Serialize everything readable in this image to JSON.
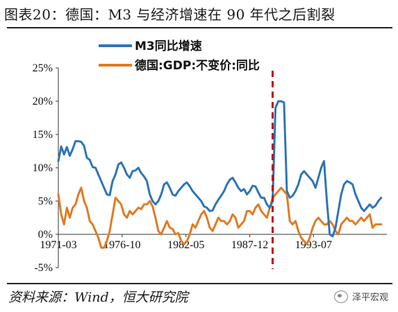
{
  "header": {
    "title": "图表20：德国：M3 与经济增速在 90 年代之后割裂"
  },
  "footer": {
    "source": "资料来源：Wind，恒大研究院",
    "logo_text": "泽平宏观"
  },
  "colors": {
    "m3": "#2e75b6",
    "gdp": "#e07b25",
    "marker": "#c00000"
  },
  "chart_data": {
    "type": "line",
    "title": "",
    "xlabel": "",
    "ylabel": "",
    "ylim": [
      -5,
      25
    ],
    "yticks": [
      -5,
      0,
      5,
      10,
      15,
      20,
      25
    ],
    "ytick_labels": [
      "-5%",
      "0%",
      "5%",
      "10%",
      "15%",
      "20%",
      "25%"
    ],
    "xlim": [
      1971.25,
      2000.0
    ],
    "xticks": [
      1971.25,
      1976.83,
      1982.42,
      1988.0,
      1993.58
    ],
    "xtick_labels": [
      "1971-03",
      "1976-10",
      "1982-05",
      "1987-12",
      "1993-07"
    ],
    "legend_position": "top",
    "grid": false,
    "vertical_marker_x": 1990.0,
    "series": [
      {
        "name": "M3同比增速",
        "x": [
          1971.25,
          1971.5,
          1971.75,
          1972.0,
          1972.25,
          1972.5,
          1972.75,
          1973.0,
          1973.25,
          1973.5,
          1973.75,
          1974.0,
          1974.25,
          1974.5,
          1974.75,
          1975.0,
          1975.25,
          1975.5,
          1975.75,
          1976.0,
          1976.25,
          1976.5,
          1976.75,
          1977.0,
          1977.25,
          1977.5,
          1977.75,
          1978.0,
          1978.25,
          1978.5,
          1978.75,
          1979.0,
          1979.25,
          1979.5,
          1979.75,
          1980.0,
          1980.25,
          1980.5,
          1980.75,
          1981.0,
          1981.25,
          1981.5,
          1981.75,
          1982.0,
          1982.25,
          1982.5,
          1982.75,
          1983.0,
          1983.25,
          1983.5,
          1983.75,
          1984.0,
          1984.25,
          1984.5,
          1984.75,
          1985.0,
          1985.25,
          1985.5,
          1985.75,
          1986.0,
          1986.25,
          1986.5,
          1986.75,
          1987.0,
          1987.25,
          1987.5,
          1987.75,
          1988.0,
          1988.25,
          1988.5,
          1988.75,
          1989.0,
          1989.25,
          1989.5,
          1989.75,
          1990.0,
          1990.25,
          1990.5,
          1990.75,
          1991.0,
          1991.25,
          1991.5,
          1991.75,
          1992.0,
          1992.25,
          1992.5,
          1992.75,
          1993.0,
          1993.25,
          1993.5,
          1993.75,
          1994.0,
          1994.25,
          1994.5,
          1994.75,
          1995.0,
          1995.25,
          1995.5,
          1995.75,
          1996.0,
          1996.25,
          1996.5,
          1996.75,
          1997.0,
          1997.25,
          1997.5,
          1997.75,
          1998.0,
          1998.25,
          1998.5,
          1998.75,
          1999.0,
          1999.25,
          1999.5
        ],
        "values": [
          11,
          13.2,
          12,
          13.1,
          11.8,
          12.8,
          14,
          14,
          13.9,
          13.3,
          11.5,
          11.2,
          10.1,
          10,
          9,
          8,
          7,
          6,
          5.9,
          8,
          9,
          10.5,
          10.8,
          10,
          9,
          8.5,
          9.5,
          9.6,
          10,
          9.2,
          8.7,
          8,
          6,
          5,
          4.5,
          5,
          6,
          7.5,
          7.8,
          7,
          6,
          5.8,
          6.5,
          7,
          7.5,
          7.8,
          7.2,
          6.5,
          6,
          5.5,
          5,
          4.2,
          4,
          3.5,
          3.6,
          4.5,
          5.2,
          5.8,
          6.5,
          7.5,
          8.2,
          8.5,
          7.8,
          7,
          6.5,
          6.8,
          6,
          6.5,
          7.3,
          7.2,
          6.3,
          5.5,
          5.5,
          4.5,
          4,
          5,
          19,
          20,
          20,
          19.8,
          6.5,
          5.5,
          5.8,
          6.5,
          7.5,
          9,
          9.5,
          9,
          8.5,
          8,
          7,
          8.5,
          10,
          11,
          5,
          0,
          -0.3,
          1,
          3.5,
          6,
          7.5,
          8,
          7.8,
          7.5,
          6,
          5,
          4,
          3.5,
          4,
          4.5,
          4,
          4.3,
          5,
          5.5
        ]
      },
      {
        "name": "德国:GDP:不变价:同比",
        "x": [
          1971.25,
          1971.5,
          1971.75,
          1972.0,
          1972.25,
          1972.5,
          1972.75,
          1973.0,
          1973.25,
          1973.5,
          1973.75,
          1974.0,
          1974.25,
          1974.5,
          1974.75,
          1975.0,
          1975.25,
          1975.5,
          1975.75,
          1976.0,
          1976.25,
          1976.5,
          1976.75,
          1977.0,
          1977.25,
          1977.5,
          1977.75,
          1978.0,
          1978.25,
          1978.5,
          1978.75,
          1979.0,
          1979.25,
          1979.5,
          1979.75,
          1980.0,
          1980.25,
          1980.5,
          1980.75,
          1981.0,
          1981.25,
          1981.5,
          1981.75,
          1982.0,
          1982.25,
          1982.5,
          1982.75,
          1983.0,
          1983.25,
          1983.5,
          1983.75,
          1984.0,
          1984.25,
          1984.5,
          1984.75,
          1985.0,
          1985.25,
          1985.5,
          1985.75,
          1986.0,
          1986.25,
          1986.5,
          1986.75,
          1987.0,
          1987.25,
          1987.5,
          1987.75,
          1988.0,
          1988.25,
          1988.5,
          1988.75,
          1989.0,
          1989.25,
          1989.5,
          1989.75,
          1990.0,
          1990.25,
          1990.5,
          1990.75,
          1991.0,
          1991.25,
          1991.5,
          1991.75,
          1992.0,
          1992.25,
          1992.5,
          1992.75,
          1993.0,
          1993.25,
          1993.5,
          1993.75,
          1994.0,
          1994.25,
          1994.5,
          1994.75,
          1995.0,
          1995.25,
          1995.5,
          1995.75,
          1996.0,
          1996.25,
          1996.5,
          1996.75,
          1997.0,
          1997.25,
          1997.5,
          1997.75,
          1998.0,
          1998.25,
          1998.5,
          1998.75,
          1999.0,
          1999.25,
          1999.5
        ],
        "values": [
          6,
          3,
          1.5,
          4,
          2.5,
          4,
          4.5,
          6,
          7,
          5,
          4,
          2,
          1.5,
          0.5,
          -0.5,
          -2,
          -2,
          -1,
          0.5,
          3,
          5.5,
          5,
          4.5,
          3,
          2.5,
          3.5,
          3,
          3.5,
          4,
          3.8,
          4.5,
          4.5,
          5,
          4.2,
          2.5,
          0.5,
          0,
          1,
          2,
          1,
          0.8,
          0,
          0.2,
          -1,
          -1.5,
          -1,
          0,
          1.5,
          1,
          2,
          3,
          3.5,
          2.5,
          1,
          0.5,
          1.5,
          2.5,
          2,
          2,
          1.5,
          2,
          3,
          2.5,
          1,
          1.5,
          2,
          3.5,
          3.5,
          3,
          4,
          4.5,
          3.5,
          3,
          2.5,
          4,
          5.5,
          6,
          6.5,
          7,
          6.5,
          6,
          2,
          1.5,
          2,
          0.5,
          -0.5,
          -1,
          -1.5,
          -0.5,
          1,
          2,
          2.5,
          2,
          1.5,
          1.5,
          2,
          1.5,
          0.5,
          0,
          1.5,
          2,
          2.5,
          2,
          2,
          1.5,
          2,
          2.5,
          2,
          2.5,
          3,
          1,
          1.5,
          1.5,
          1.5
        ]
      }
    ]
  }
}
